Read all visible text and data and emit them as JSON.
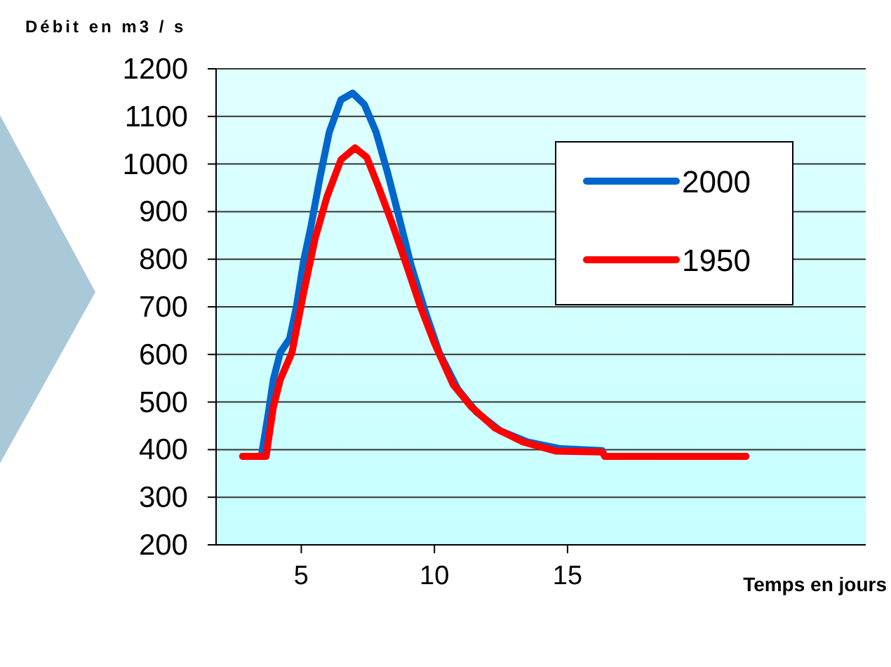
{
  "chart_data": {
    "type": "line",
    "xlabel": "Temps en jours",
    "ylabel": "Débit en m3 / s",
    "xlim": [
      1.8,
      26.2
    ],
    "xticks": [
      5,
      10,
      15
    ],
    "ylim": [
      200,
      1200
    ],
    "yticks": [
      200,
      300,
      400,
      500,
      600,
      700,
      800,
      900,
      1000,
      1100,
      1200
    ],
    "grid": "y",
    "legend": "top right",
    "marker": "none",
    "line_style": "solid",
    "series": [
      {
        "name": "2000",
        "color": "#0066cc",
        "x": [
          2.8,
          3.5,
          3.77,
          3.95,
          4.21,
          4.56,
          4.82,
          5.09,
          5.35,
          5.7,
          6.05,
          6.49,
          6.93,
          7.37,
          7.81,
          8.25,
          8.69,
          9.12,
          9.65,
          10.18,
          10.88,
          11.58,
          12.46,
          13.51,
          14.74,
          16.3,
          16.4,
          21.7
        ],
        "values": [
          386,
          386,
          479,
          547,
          604,
          633,
          701,
          797,
          865,
          971,
          1067,
          1135,
          1149,
          1125,
          1067,
          980,
          884,
          788,
          691,
          604,
          527,
          479,
          440,
          416,
          402,
          398,
          386,
          386
        ]
      },
      {
        "name": "1950",
        "color": "#ff0000",
        "x": [
          2.8,
          3.68,
          3.77,
          3.95,
          4.21,
          4.65,
          5.09,
          5.53,
          5.97,
          6.49,
          7.02,
          7.46,
          7.9,
          8.42,
          8.95,
          9.47,
          10.0,
          10.7,
          11.4,
          12.28,
          13.33,
          14.56,
          16.3,
          16.4,
          21.7
        ],
        "values": [
          386,
          386,
          421,
          489,
          547,
          604,
          730,
          846,
          932,
          1009,
          1034,
          1014,
          952,
          874,
          788,
          701,
          624,
          537,
          489,
          445,
          416,
          397,
          395,
          386,
          386
        ]
      }
    ]
  }
}
